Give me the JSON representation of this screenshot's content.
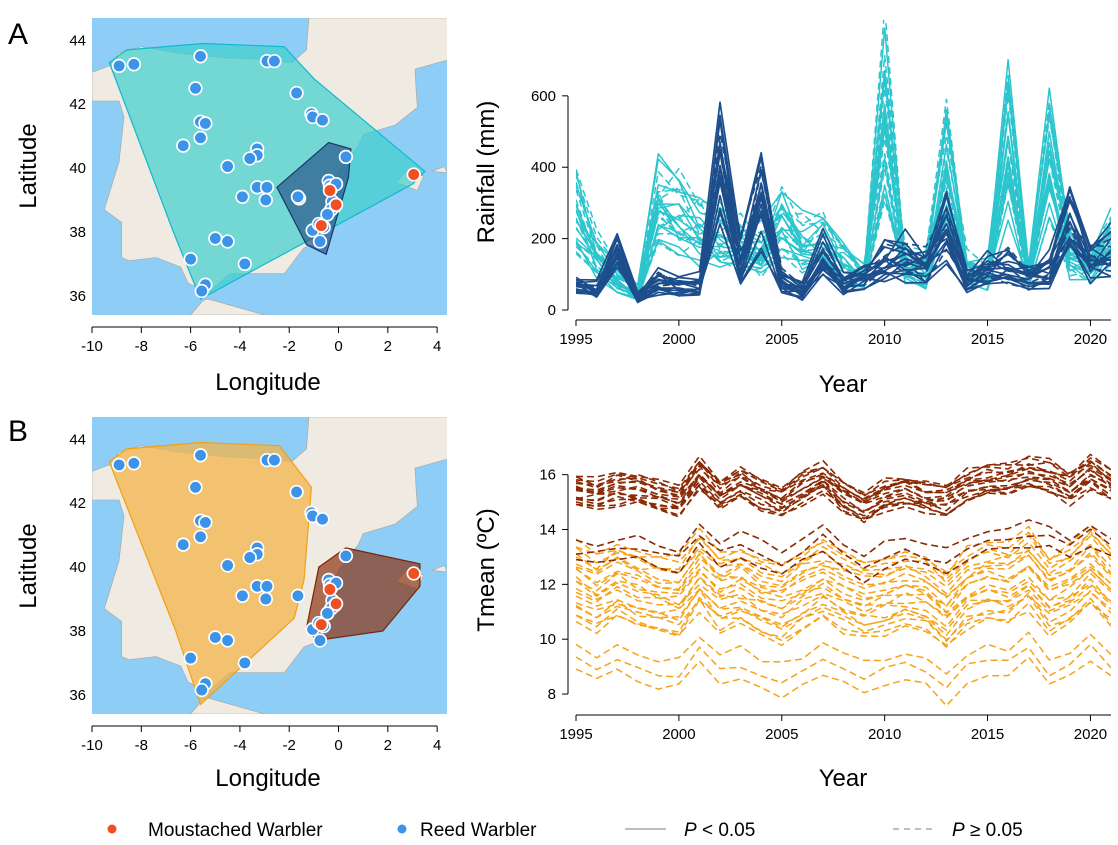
{
  "colors": {
    "sea": "#8ecdf5",
    "land": "#efebe3",
    "land_border": "#a9a49a",
    "moustached": "#f04e23",
    "reed": "#3d93e8",
    "rain_dark": "#1d4e8c",
    "rain_light": "#2cc5cd",
    "temp_dark": "#8a2b06",
    "temp_light": "#f5a31a",
    "legend_line": "#a9a9a9",
    "hull_A_large": "#3fd0cc",
    "hull_A_small": "#2b5a8e",
    "hull_B_large": "#f3b44a",
    "hull_B_small": "#8b3512"
  },
  "panels": {
    "A": {
      "letter": "A"
    },
    "B": {
      "letter": "B"
    }
  },
  "legend": {
    "moustached": "Moustached Warbler",
    "reed": "Reed Warbler",
    "sig_p": "P",
    "sig_rest": " < 0.05",
    "nonsig_p": "P",
    "nonsig_rest": " ≥ 0.05"
  },
  "chart_data": [
    {
      "id": "map-A",
      "type": "scatter",
      "title": "",
      "xlabel": "Longitude",
      "ylabel": "Latitude",
      "xlim": [
        -10,
        4.4
      ],
      "ylim": [
        35.4,
        44.7
      ],
      "xticks": [
        -10,
        -8,
        -6,
        -4,
        -2,
        0,
        2,
        4
      ],
      "yticks": [
        36,
        38,
        40,
        42,
        44
      ],
      "series": [
        {
          "name": "Reed Warbler",
          "points": [
            [
              -8.9,
              43.2
            ],
            [
              -8.3,
              43.25
            ],
            [
              -5.6,
              43.5
            ],
            [
              -2.9,
              43.35
            ],
            [
              -2.6,
              43.35
            ],
            [
              -5.8,
              42.5
            ],
            [
              -1.7,
              42.35
            ],
            [
              -5.6,
              41.45
            ],
            [
              -5.4,
              41.4
            ],
            [
              -1.1,
              41.7
            ],
            [
              -1.05,
              41.6
            ],
            [
              -0.65,
              41.5
            ],
            [
              -5.6,
              40.95
            ],
            [
              -6.3,
              40.7
            ],
            [
              -3.3,
              40.6
            ],
            [
              -3.3,
              40.4
            ],
            [
              -3.6,
              40.3
            ],
            [
              -4.5,
              40.05
            ],
            [
              -1.6,
              39.05
            ],
            [
              -1.65,
              39.1
            ],
            [
              0.3,
              40.35
            ],
            [
              -0.4,
              39.6
            ],
            [
              -0.35,
              39.45
            ],
            [
              -0.3,
              39.35
            ],
            [
              -0.1,
              39.5
            ],
            [
              -3.3,
              39.4
            ],
            [
              -2.9,
              39.4
            ],
            [
              -3.9,
              39.1
            ],
            [
              -2.95,
              39.0
            ],
            [
              -0.25,
              38.95
            ],
            [
              -0.15,
              38.8
            ],
            [
              -0.3,
              38.7
            ],
            [
              -0.45,
              38.55
            ],
            [
              -1.05,
              38.05
            ],
            [
              -0.8,
              38.25
            ],
            [
              -0.6,
              38.15
            ],
            [
              -5.0,
              37.8
            ],
            [
              -4.5,
              37.7
            ],
            [
              -0.75,
              37.7
            ],
            [
              -3.8,
              37.0
            ],
            [
              -6.0,
              37.15
            ],
            [
              -5.4,
              36.35
            ],
            [
              -5.55,
              36.15
            ]
          ]
        },
        {
          "name": "Moustached Warbler",
          "points": [
            [
              -0.35,
              39.3
            ],
            [
              -0.1,
              38.85
            ],
            [
              -0.7,
              38.2
            ],
            [
              3.05,
              39.8
            ]
          ]
        }
      ],
      "hulls": [
        [
          [
            -9.3,
            43.3
          ],
          [
            -8.6,
            43.7
          ],
          [
            -5.5,
            43.9
          ],
          [
            -2.2,
            43.8
          ],
          [
            -1.0,
            42.8
          ],
          [
            3.5,
            39.9
          ],
          [
            3.0,
            39.5
          ],
          [
            -5.6,
            35.9
          ],
          [
            -6.7,
            38.0
          ],
          [
            -9.1,
            42.9
          ]
        ],
        [
          [
            -2.5,
            39.4
          ],
          [
            -0.4,
            40.8
          ],
          [
            0.5,
            40.6
          ],
          [
            0.4,
            39.7
          ],
          [
            -0.5,
            37.3
          ],
          [
            -1.3,
            37.6
          ]
        ]
      ]
    },
    {
      "id": "rain",
      "type": "line",
      "title": "",
      "xlabel": "Year",
      "ylabel": "Rainfall (mm)",
      "xlim": [
        1995,
        2021
      ],
      "ylim": [
        0,
        650
      ],
      "xticks": [
        1995,
        2000,
        2005,
        2010,
        2015,
        2020
      ],
      "yticks": [
        0,
        200,
        400,
        600
      ],
      "series": [
        {
          "name": "Reed Warbler sites",
          "values": [
            340,
            190,
            110,
            60,
            370,
            320,
            280,
            250,
            220,
            200,
            300,
            220,
            230,
            150,
            120,
            680,
            150,
            130,
            490,
            140,
            120,
            590,
            120,
            550,
            190,
            160,
            260
          ]
        },
        {
          "name": "Moustached Warbler sites",
          "values": [
            80,
            60,
            200,
            40,
            90,
            70,
            80,
            480,
            150,
            360,
            90,
            60,
            170,
            80,
            110,
            160,
            160,
            140,
            240,
            90,
            120,
            130,
            110,
            130,
            280,
            150,
            180
          ]
        }
      ]
    },
    {
      "id": "map-B",
      "type": "scatter",
      "title": "",
      "xlabel": "Longitude",
      "ylabel": "Latitude",
      "xlim": [
        -10,
        4.4
      ],
      "ylim": [
        35.4,
        44.7
      ],
      "xticks": [
        -10,
        -8,
        -6,
        -4,
        -2,
        0,
        2,
        4
      ],
      "yticks": [
        36,
        38,
        40,
        42,
        44
      ],
      "series": [
        {
          "name": "Reed Warbler",
          "points": [
            [
              -8.9,
              43.2
            ],
            [
              -8.3,
              43.25
            ],
            [
              -5.6,
              43.5
            ],
            [
              -2.9,
              43.35
            ],
            [
              -2.6,
              43.35
            ],
            [
              -5.8,
              42.5
            ],
            [
              -1.7,
              42.35
            ],
            [
              -5.6,
              41.45
            ],
            [
              -5.4,
              41.4
            ],
            [
              -1.1,
              41.7
            ],
            [
              -1.05,
              41.6
            ],
            [
              -0.65,
              41.5
            ],
            [
              -5.6,
              40.95
            ],
            [
              -6.3,
              40.7
            ],
            [
              -3.3,
              40.6
            ],
            [
              -3.3,
              40.4
            ],
            [
              -3.6,
              40.3
            ],
            [
              -4.5,
              40.05
            ],
            [
              -1.65,
              39.1
            ],
            [
              0.3,
              40.35
            ],
            [
              -0.4,
              39.6
            ],
            [
              -0.35,
              39.45
            ],
            [
              -0.3,
              39.35
            ],
            [
              -0.1,
              39.5
            ],
            [
              -3.3,
              39.4
            ],
            [
              -2.9,
              39.4
            ],
            [
              -3.9,
              39.1
            ],
            [
              -2.95,
              39.0
            ],
            [
              -0.25,
              38.95
            ],
            [
              -0.15,
              38.8
            ],
            [
              -0.3,
              38.7
            ],
            [
              -0.45,
              38.55
            ],
            [
              -1.05,
              38.05
            ],
            [
              -0.8,
              38.25
            ],
            [
              -0.6,
              38.15
            ],
            [
              -5.0,
              37.8
            ],
            [
              -4.5,
              37.7
            ],
            [
              -0.75,
              37.7
            ],
            [
              -3.8,
              37.0
            ],
            [
              -6.0,
              37.15
            ],
            [
              -5.4,
              36.35
            ],
            [
              -5.55,
              36.15
            ]
          ]
        },
        {
          "name": "Moustached Warbler",
          "points": [
            [
              -0.35,
              39.3
            ],
            [
              -0.1,
              38.85
            ],
            [
              -0.7,
              38.2
            ],
            [
              3.05,
              39.8
            ]
          ]
        }
      ],
      "hulls": [
        [
          [
            -9.3,
            43.3
          ],
          [
            -8.6,
            43.7
          ],
          [
            -5.6,
            43.9
          ],
          [
            -2.4,
            43.8
          ],
          [
            -1.1,
            42.5
          ],
          [
            -1.4,
            39.6
          ],
          [
            -1.8,
            38.4
          ],
          [
            -5.6,
            35.7
          ],
          [
            -6.6,
            38.0
          ],
          [
            -9.1,
            42.9
          ]
        ],
        [
          [
            -0.8,
            40.0
          ],
          [
            0.3,
            40.6
          ],
          [
            3.3,
            40.1
          ],
          [
            3.3,
            39.4
          ],
          [
            1.8,
            38.0
          ],
          [
            -0.9,
            37.7
          ],
          [
            -1.3,
            38.1
          ]
        ]
      ]
    },
    {
      "id": "temp",
      "type": "line",
      "title": "",
      "xlabel": "Year",
      "ylabel": "Tmean (ºC)",
      "xlim": [
        1995,
        2021
      ],
      "ylim": [
        7.6,
        16.9
      ],
      "xticks": [
        1995,
        2000,
        2005,
        2010,
        2015,
        2020
      ],
      "yticks": [
        8,
        10,
        12,
        14,
        16
      ],
      "series": [
        {
          "name": "Moustached Warbler sites",
          "values": [
            15.4,
            15.3,
            15.5,
            15.5,
            15.2,
            15.1,
            16.1,
            15.3,
            15.7,
            15.3,
            15.0,
            15.5,
            15.9,
            15.2,
            14.8,
            15.3,
            15.4,
            15.2,
            15.1,
            15.6,
            15.8,
            15.8,
            16.0,
            15.9,
            15.5,
            16.1,
            15.6
          ]
        },
        {
          "name": "Reed Warbler sites",
          "values": [
            12.0,
            11.6,
            12.0,
            11.7,
            11.5,
            11.4,
            12.4,
            11.6,
            11.8,
            11.4,
            11.2,
            11.6,
            12.0,
            11.6,
            11.3,
            11.5,
            11.7,
            11.5,
            10.9,
            11.7,
            12.0,
            11.9,
            12.4,
            11.5,
            11.8,
            12.5,
            11.7
          ]
        }
      ]
    }
  ]
}
